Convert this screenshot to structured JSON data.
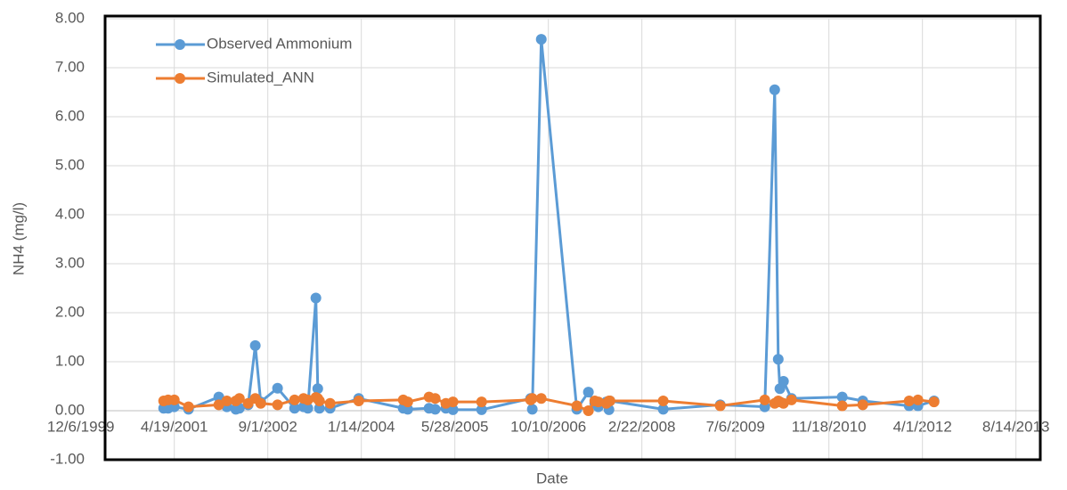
{
  "chart_data": {
    "type": "line",
    "x_label": "Date",
    "y_label": "NH4 (mg/l)",
    "x": [
      36943,
      36967,
      37000,
      37076,
      37238,
      37281,
      37329,
      37348,
      37395,
      37433,
      37462,
      37552,
      37643,
      37691,
      37714,
      37757,
      37767,
      37776,
      37833,
      37986,
      38224,
      38248,
      38362,
      38395,
      38452,
      38490,
      38643,
      38905,
      38914,
      38962,
      39152,
      39214,
      39248,
      39267,
      39310,
      39324,
      39329,
      39614,
      39919,
      40157,
      40210,
      40229,
      40238,
      40257,
      40300,
      40571,
      40681,
      40929,
      40976,
      41062
    ],
    "series": [
      {
        "name": "Observed Ammonium",
        "color": "#5b9bd5",
        "values": [
          0.05,
          0.05,
          0.08,
          0.03,
          0.28,
          0.08,
          0.03,
          0.05,
          0.12,
          1.33,
          0.18,
          0.46,
          0.05,
          0.08,
          0.05,
          2.3,
          0.45,
          0.05,
          0.05,
          0.25,
          0.05,
          0.03,
          0.05,
          0.03,
          0.05,
          0.02,
          0.02,
          0.25,
          0.03,
          7.58,
          0.03,
          0.38,
          0.15,
          0.08,
          0.18,
          0.02,
          0.2,
          0.03,
          0.12,
          0.08,
          6.55,
          1.05,
          0.45,
          0.6,
          0.25,
          0.28,
          0.2,
          0.1,
          0.1,
          0.2
        ]
      },
      {
        "name": "Simulated_ANN",
        "color": "#ed7d31",
        "values": [
          0.2,
          0.22,
          0.22,
          0.08,
          0.12,
          0.2,
          0.2,
          0.25,
          0.15,
          0.25,
          0.15,
          0.12,
          0.22,
          0.25,
          0.22,
          0.27,
          0.25,
          0.2,
          0.15,
          0.2,
          0.22,
          0.18,
          0.28,
          0.25,
          0.15,
          0.18,
          0.18,
          0.22,
          0.25,
          0.25,
          0.1,
          0.0,
          0.2,
          0.18,
          0.15,
          0.2,
          0.2,
          0.2,
          0.1,
          0.22,
          0.15,
          0.2,
          0.18,
          0.15,
          0.22,
          0.1,
          0.12,
          0.2,
          0.22,
          0.18
        ]
      }
    ],
    "xlim": [
      36630,
      41630
    ],
    "xticks": [
      {
        "value": 36500,
        "label": "12/6/1999"
      },
      {
        "value": 37000,
        "label": "4/19/2001"
      },
      {
        "value": 37500,
        "label": "9/1/2002"
      },
      {
        "value": 38000,
        "label": "1/14/2004"
      },
      {
        "value": 38500,
        "label": "5/28/2005"
      },
      {
        "value": 39000,
        "label": "10/10/2006"
      },
      {
        "value": 39500,
        "label": "2/22/2008"
      },
      {
        "value": 40000,
        "label": "7/6/2009"
      },
      {
        "value": 40500,
        "label": "11/18/2010"
      },
      {
        "value": 41000,
        "label": "4/1/2012"
      },
      {
        "value": 41500,
        "label": "8/14/2013"
      }
    ],
    "ylim": [
      -1,
      8
    ],
    "yticks": [
      {
        "value": -1,
        "label": "-1.00"
      },
      {
        "value": 0,
        "label": "0.00"
      },
      {
        "value": 1,
        "label": "1.00"
      },
      {
        "value": 2,
        "label": "2.00"
      },
      {
        "value": 3,
        "label": "3.00"
      },
      {
        "value": 4,
        "label": "4.00"
      },
      {
        "value": 5,
        "label": "5.00"
      },
      {
        "value": 6,
        "label": "6.00"
      },
      {
        "value": 7,
        "label": "7.00"
      },
      {
        "value": 8,
        "label": "8.00"
      }
    ],
    "grid": true,
    "legend": "top-left"
  }
}
